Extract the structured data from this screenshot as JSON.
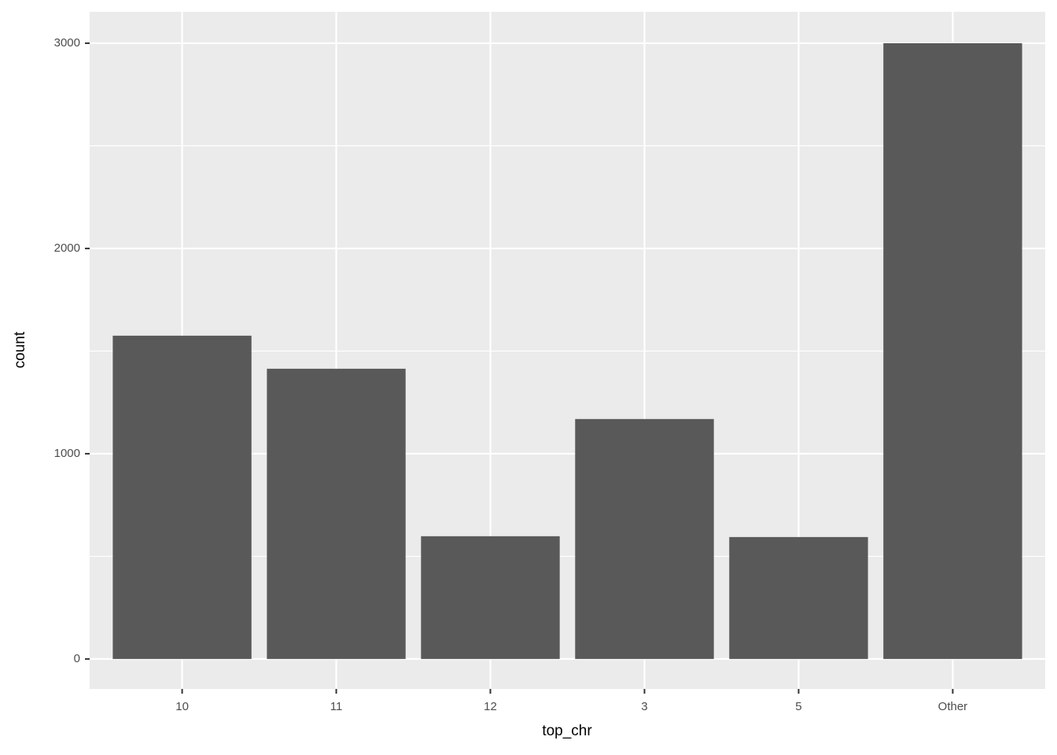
{
  "chart_data": {
    "type": "bar",
    "x_label": "top_chr",
    "y_label": "count",
    "categories": [
      "10",
      "11",
      "12",
      "3",
      "5",
      "Other"
    ],
    "values": [
      1575,
      1414,
      598,
      1169,
      594,
      3000
    ],
    "color": "#595959",
    "ylim": [
      -146,
      3153
    ],
    "yticks": [
      0,
      1000,
      2000,
      3000
    ],
    "minor_yticks": [
      500,
      1500,
      2500
    ],
    "grid": true,
    "panel_color": "#ebebeb"
  }
}
